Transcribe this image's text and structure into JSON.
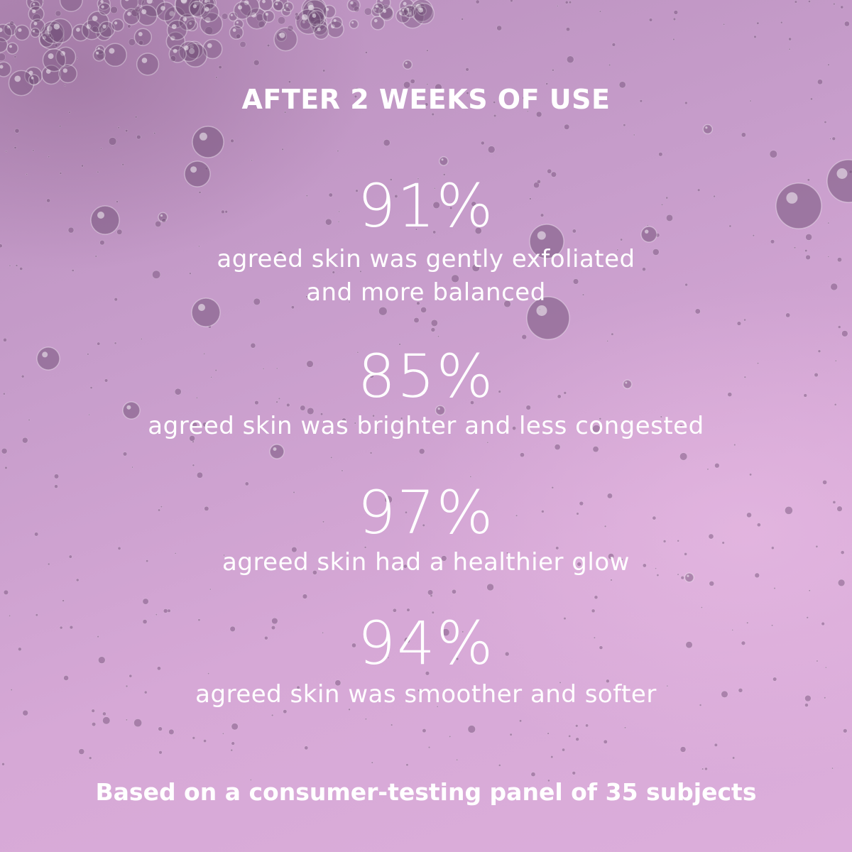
{
  "title": "AFTER 2 WEEKS OF USE",
  "stats": [
    {
      "value": "91%",
      "caption_lines": [
        "agreed skin was gently exfoliated",
        "and more balanced"
      ]
    },
    {
      "value": "85%",
      "caption_lines": [
        "agreed skin was brighter and less congested"
      ]
    },
    {
      "value": "97%",
      "caption_lines": [
        "agreed skin had a healthier glow"
      ]
    },
    {
      "value": "94%",
      "caption_lines": [
        "agreed skin was smoother and softer"
      ]
    }
  ],
  "footnote": "Based on a consumer-testing panel of 35 subjects",
  "colors": {
    "background": "#c99fcc",
    "text": "#ffffff",
    "bubble": "#7d5a80"
  }
}
